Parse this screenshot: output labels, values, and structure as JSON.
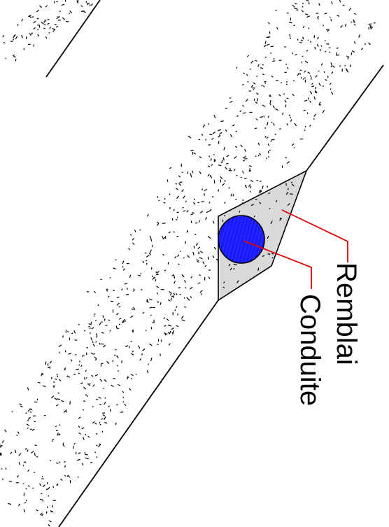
{
  "diagram": {
    "labels": {
      "backfill": "Remblai",
      "pipe": "Conduite"
    },
    "colors": {
      "background": "#ffffff",
      "ground_line": "#000000",
      "soil_speckle": "#000000",
      "backfill_fill": "#d9d9d9",
      "pipe_fill": "#1a1aff",
      "pipe_hatch": "#6f8cff",
      "leader_line": "#e30000",
      "label_text": "#000000"
    }
  }
}
